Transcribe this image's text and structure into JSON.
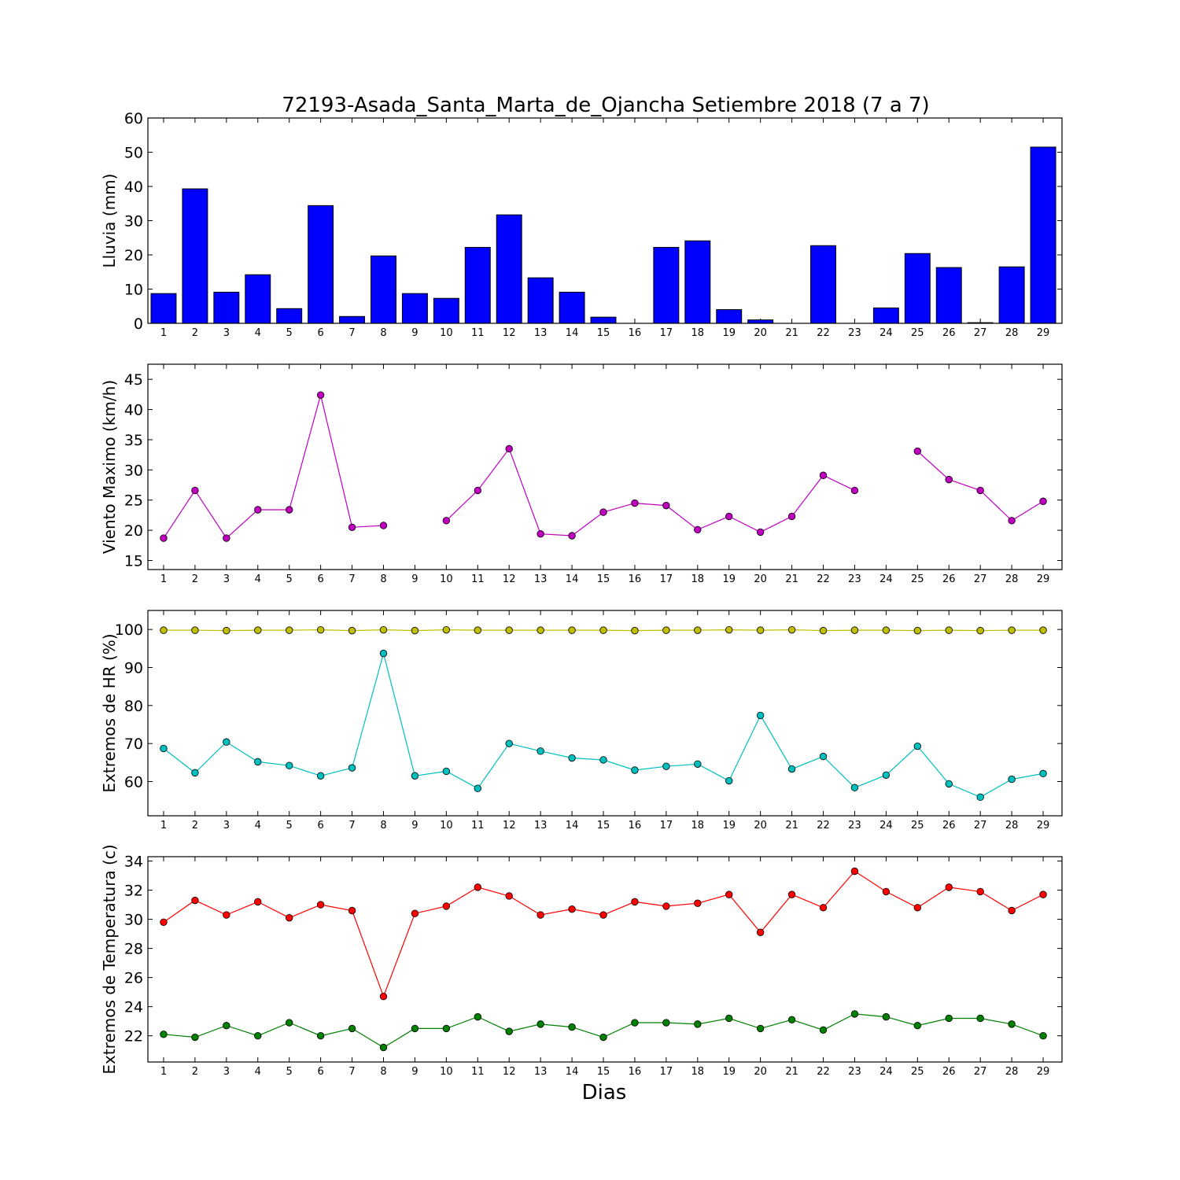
{
  "chart_data": {
    "title": "72193-Asada_Santa_Marta_de_Ojancha Setiembre 2018  (7 a 7)",
    "xlabel": "Dias",
    "days": [
      1,
      2,
      3,
      4,
      5,
      6,
      7,
      8,
      9,
      10,
      11,
      12,
      13,
      14,
      15,
      16,
      17,
      18,
      19,
      20,
      21,
      22,
      23,
      24,
      25,
      26,
      27,
      28,
      29
    ],
    "panels": [
      {
        "type": "bar",
        "ylabel": "Lluvia (mm)",
        "ylim": [
          0,
          60
        ],
        "yticks": [
          0,
          10,
          20,
          30,
          40,
          50,
          60
        ],
        "series": [
          {
            "color": "#0000ff",
            "values": [
              8.7,
              39.3,
              9.1,
              14.2,
              4.3,
              34.4,
              2.0,
              19.7,
              8.7,
              7.3,
              22.2,
              31.7,
              13.3,
              9.1,
              1.8,
              0,
              22.2,
              24.1,
              4.0,
              1.0,
              0,
              22.7,
              0,
              4.5,
              20.4,
              16.3,
              0.2,
              16.5,
              51.5
            ]
          }
        ]
      },
      {
        "type": "line",
        "ylabel": "Viento Maximo (km/h)",
        "ylim": [
          13.5,
          47.5
        ],
        "yticks": [
          15,
          20,
          25,
          30,
          35,
          40,
          45
        ],
        "series": [
          {
            "color": "#bf00bf",
            "values": [
              18.7,
              26.6,
              18.7,
              23.4,
              23.4,
              42.4,
              20.5,
              20.8,
              null,
              21.6,
              26.6,
              33.5,
              19.4,
              19.1,
              23.0,
              24.5,
              24.1,
              20.1,
              22.3,
              19.7,
              22.3,
              29.1,
              26.6,
              null,
              33.1,
              28.4,
              26.6,
              21.6,
              24.8
            ]
          }
        ]
      },
      {
        "type": "line",
        "ylabel": "Extremos de HR (%)",
        "ylim": [
          51,
          105
        ],
        "yticks": [
          60,
          70,
          80,
          90,
          100
        ],
        "series": [
          {
            "color": "#bfbf00",
            "values": [
              99.8,
              99.8,
              99.7,
              99.8,
              99.8,
              99.9,
              99.7,
              99.9,
              99.7,
              99.9,
              99.8,
              99.8,
              99.8,
              99.8,
              99.8,
              99.7,
              99.8,
              99.8,
              99.9,
              99.8,
              99.9,
              99.7,
              99.8,
              99.8,
              99.7,
              99.8,
              99.7,
              99.8,
              99.8
            ]
          },
          {
            "color": "#00bfbf",
            "values": [
              68.7,
              62.3,
              70.4,
              65.2,
              64.2,
              61.5,
              63.6,
              93.7,
              61.5,
              62.7,
              58.2,
              70.0,
              68.0,
              66.2,
              65.7,
              63.0,
              64.0,
              64.6,
              60.2,
              77.4,
              63.3,
              66.6,
              58.4,
              61.7,
              69.3,
              59.4,
              55.9,
              60.6,
              62.1
            ]
          }
        ]
      },
      {
        "type": "line",
        "ylabel": "Extremos de Temperatura (c)",
        "ylim": [
          20.2,
          34.3
        ],
        "yticks": [
          22,
          24,
          26,
          28,
          30,
          32,
          34
        ],
        "series": [
          {
            "color": "#ff0000",
            "values": [
              29.8,
              31.3,
              30.3,
              31.2,
              30.1,
              31.0,
              30.6,
              24.7,
              30.4,
              30.9,
              32.2,
              31.6,
              30.3,
              30.7,
              30.3,
              31.2,
              30.9,
              31.1,
              31.7,
              29.1,
              31.7,
              30.8,
              33.3,
              31.9,
              30.8,
              32.2,
              31.9,
              30.6,
              31.7
            ]
          },
          {
            "color": "#008000",
            "values": [
              22.1,
              21.9,
              22.7,
              22.0,
              22.9,
              22.0,
              22.5,
              21.2,
              22.5,
              22.5,
              23.3,
              22.3,
              22.8,
              22.6,
              21.9,
              22.9,
              22.9,
              22.8,
              23.2,
              22.5,
              23.1,
              22.4,
              23.5,
              23.3,
              22.7,
              23.2,
              23.2,
              22.8,
              22.0
            ]
          }
        ]
      }
    ]
  }
}
